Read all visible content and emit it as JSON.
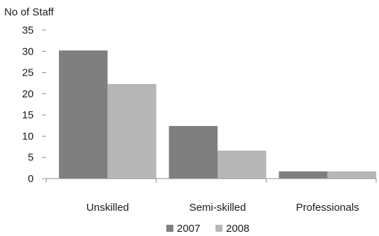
{
  "chart_data": {
    "type": "bar",
    "ylabel": "No of Staff",
    "xlabel": "",
    "title": "",
    "categories": [
      "Unskilled",
      "Semi-skilled",
      "Professionals"
    ],
    "series": [
      {
        "name": "2007",
        "values": [
          30.2,
          12.4,
          1.7
        ],
        "color": "#7f7f7f"
      },
      {
        "name": "2008",
        "values": [
          22.3,
          6.6,
          1.7
        ],
        "color": "#b7b7b7"
      }
    ],
    "ylim": [
      0,
      35
    ],
    "yticks": [
      "0",
      "5",
      "10",
      "15",
      "20",
      "25",
      "30",
      "35"
    ],
    "grid": false,
    "legend_position": "bottom"
  }
}
